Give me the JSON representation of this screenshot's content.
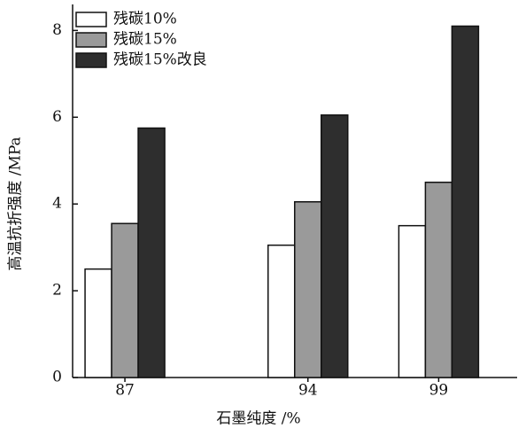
{
  "chart_data": {
    "type": "bar",
    "x_label": "石墨纯度 /%",
    "y_label": "高温抗折强度 /MPa",
    "x": [
      87,
      94,
      99
    ],
    "xlim": [
      85,
      102
    ],
    "xticks": [
      87,
      94,
      99
    ],
    "ylim": [
      0,
      8.6
    ],
    "yticks": [
      0,
      2,
      4,
      6,
      8
    ],
    "legend": "upper left",
    "series": [
      {
        "name": "残碳10%",
        "color": "#ffffff",
        "values": [
          2.5,
          3.05,
          3.5
        ]
      },
      {
        "name": "残碳15%",
        "color": "#9a9a9a",
        "values": [
          3.55,
          4.05,
          4.5
        ]
      },
      {
        "name": "残碳15%改良",
        "color": "#2e2e2e",
        "values": [
          5.75,
          6.05,
          8.1
        ]
      }
    ]
  }
}
